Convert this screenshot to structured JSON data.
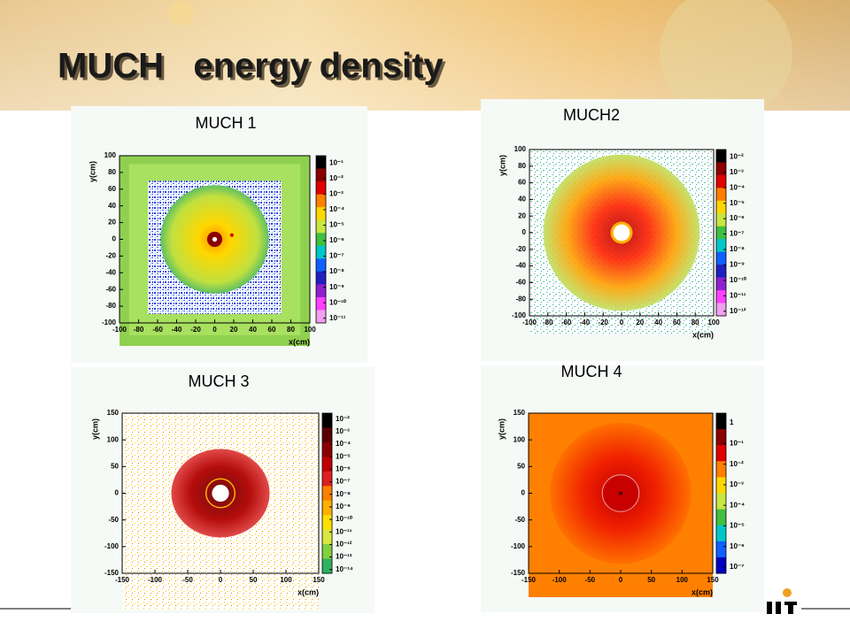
{
  "slide": {
    "title": "MUCH   energy density"
  },
  "chart_data": [
    {
      "type": "heatmap",
      "title": "MUCH 1",
      "xlabel": "x(cm)",
      "ylabel": "y(cm)",
      "xlim": [
        -100,
        100
      ],
      "xticks": [
        -100,
        -80,
        -60,
        -40,
        -20,
        0,
        20,
        40,
        60,
        80,
        100
      ],
      "ylim": [
        -100,
        100
      ],
      "yticks": [
        -100,
        -80,
        -60,
        -40,
        -20,
        0,
        20,
        40,
        60,
        80,
        100
      ],
      "zlog": true,
      "zlim": [
        5e-12,
        0.3
      ],
      "zticks": [
        {
          "value": 0.1,
          "label": "10⁻¹"
        },
        {
          "value": 0.01,
          "label": "10⁻²"
        },
        {
          "value": 0.001,
          "label": "10⁻³"
        },
        {
          "value": 0.0001,
          "label": "10⁻⁴"
        },
        {
          "value": 1e-05,
          "label": "10⁻⁵"
        },
        {
          "value": 1e-06,
          "label": "10⁻⁶"
        },
        {
          "value": 1e-07,
          "label": "10⁻⁷"
        },
        {
          "value": 1e-08,
          "label": "10⁻⁸"
        },
        {
          "value": 1e-09,
          "label": "10⁻⁹"
        },
        {
          "value": 1e-10,
          "label": "10⁻¹⁰"
        },
        {
          "value": 1e-11,
          "label": "10⁻¹¹"
        }
      ],
      "colorscale": [
        "#000000",
        "#8b0000",
        "#e00000",
        "#ff7f00",
        "#ffd700",
        "#c8e640",
        "#40c040",
        "#00c8c8",
        "#1060ff",
        "#2020c0",
        "#9020d0",
        "#ff40ff",
        "#f0a0f0"
      ]
    },
    {
      "type": "heatmap",
      "title": "MUCH2",
      "xlabel": "x(cm)",
      "ylabel": "y(cm)",
      "xlim": [
        -100,
        100
      ],
      "xticks": [
        -100,
        -80,
        -60,
        -40,
        -20,
        0,
        20,
        40,
        60,
        80,
        100
      ],
      "ylim": [
        -100,
        100
      ],
      "yticks": [
        -100,
        -80,
        -60,
        -40,
        -20,
        0,
        20,
        40,
        60,
        80,
        100
      ],
      "zlog": true,
      "zlim": [
        5e-13,
        0.03
      ],
      "zticks": [
        {
          "value": 0.01,
          "label": "10⁻²"
        },
        {
          "value": 0.001,
          "label": "10⁻³"
        },
        {
          "value": 0.0001,
          "label": "10⁻⁴"
        },
        {
          "value": 1e-05,
          "label": "10⁻⁵"
        },
        {
          "value": 1e-06,
          "label": "10⁻⁶"
        },
        {
          "value": 1e-07,
          "label": "10⁻⁷"
        },
        {
          "value": 1e-08,
          "label": "10⁻⁸"
        },
        {
          "value": 1e-09,
          "label": "10⁻⁹"
        },
        {
          "value": 1e-10,
          "label": "10⁻¹⁰"
        },
        {
          "value": 1e-11,
          "label": "10⁻¹¹"
        },
        {
          "value": 1e-12,
          "label": "10⁻¹²"
        }
      ],
      "colorscale": [
        "#000000",
        "#8b0000",
        "#e00000",
        "#ff7f00",
        "#ffd700",
        "#c8e640",
        "#40c040",
        "#00c8c8",
        "#1060ff",
        "#2020c0",
        "#9020d0",
        "#ff40ff",
        "#f0a0f0"
      ]
    },
    {
      "type": "heatmap",
      "title": "MUCH 3",
      "xlabel": "x(cm)",
      "ylabel": "y(cm)",
      "xlim": [
        -150,
        150
      ],
      "xticks": [
        -150,
        -100,
        -50,
        0,
        50,
        100,
        150
      ],
      "ylim": [
        -150,
        150
      ],
      "yticks": [
        -150,
        -100,
        -50,
        0,
        50,
        100,
        150
      ],
      "zlog": true,
      "zlim": [
        5e-15,
        0.03
      ],
      "zticks": [
        {
          "value": 0.01,
          "label": "10⁻²"
        },
        {
          "value": 0.001,
          "label": "10⁻³"
        },
        {
          "value": 0.0001,
          "label": "10⁻⁴"
        },
        {
          "value": 1e-05,
          "label": "10⁻⁵"
        },
        {
          "value": 1e-06,
          "label": "10⁻⁶"
        },
        {
          "value": 1e-07,
          "label": "10⁻⁷"
        },
        {
          "value": 1e-08,
          "label": "10⁻⁸"
        },
        {
          "value": 1e-09,
          "label": "10⁻⁹"
        },
        {
          "value": 1e-10,
          "label": "10⁻¹⁰"
        },
        {
          "value": 1e-11,
          "label": "10⁻¹¹"
        },
        {
          "value": 1e-12,
          "label": "10⁻¹²"
        },
        {
          "value": 1e-13,
          "label": "10⁻¹³"
        },
        {
          "value": 1e-14,
          "label": "10⁻¹⁴"
        }
      ],
      "colorscale": [
        "#000000",
        "#5a0000",
        "#8b0000",
        "#c00000",
        "#e02020",
        "#ff7f00",
        "#ffb000",
        "#ffe000",
        "#d8e840",
        "#80d040",
        "#30b060"
      ]
    },
    {
      "type": "heatmap",
      "title": "MUCH 4",
      "xlabel": "x(cm)",
      "ylabel": "y(cm)",
      "xlim": [
        -150,
        150
      ],
      "xticks": [
        -150,
        -100,
        -50,
        0,
        50,
        100,
        150
      ],
      "ylim": [
        -150,
        150
      ],
      "yticks": [
        -150,
        -100,
        -50,
        0,
        50,
        100,
        150
      ],
      "zlog": true,
      "zlim": [
        5e-08,
        3
      ],
      "zticks": [
        1,
        {
          "value": 0.1,
          "label": "10⁻¹"
        },
        {
          "value": 0.01,
          "label": "10⁻²"
        },
        {
          "value": 0.001,
          "label": "10⁻³"
        },
        {
          "value": 0.0001,
          "label": "10⁻⁴"
        },
        {
          "value": 1e-05,
          "label": "10⁻⁵"
        },
        {
          "value": 1e-06,
          "label": "10⁻⁶"
        },
        {
          "value": 1e-07,
          "label": "10⁻⁷"
        }
      ],
      "colorscale": [
        "#000000",
        "#8b0000",
        "#e00000",
        "#ff7f00",
        "#ffd700",
        "#c8e640",
        "#40c040",
        "#00c8c8",
        "#1060ff",
        "#0000c0"
      ]
    }
  ]
}
